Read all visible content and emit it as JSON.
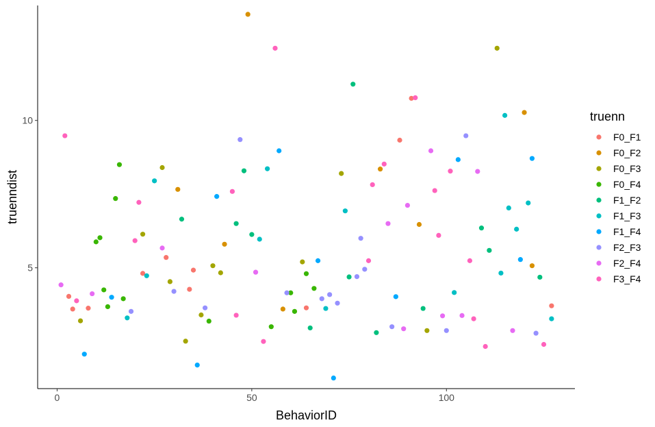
{
  "chart_data": {
    "type": "scatter",
    "xlabel": "BehaviorID",
    "ylabel": "truenndist",
    "xlim": [
      -5,
      133
    ],
    "ylim": [
      0.9,
      13.9
    ],
    "xticks": [
      0,
      50,
      100
    ],
    "yticks": [
      5,
      10
    ],
    "grid": false,
    "legend_title": "truenn",
    "legend_position": "right",
    "series": [
      {
        "name": "F0_F1",
        "color": "#F8766D",
        "points": [
          [
            3,
            4.03
          ],
          [
            4,
            3.6
          ],
          [
            8,
            3.63
          ],
          [
            22,
            4.81
          ],
          [
            28,
            5.35
          ],
          [
            34,
            4.27
          ],
          [
            35,
            4.92
          ],
          [
            64,
            3.64
          ],
          [
            88,
            9.33
          ],
          [
            91,
            10.75
          ],
          [
            127,
            3.71
          ]
        ]
      },
      {
        "name": "F0_F2",
        "color": "#D89000",
        "points": [
          [
            31,
            7.66
          ],
          [
            43,
            5.8
          ],
          [
            49,
            13.6
          ],
          [
            58,
            3.6
          ],
          [
            83,
            8.35
          ],
          [
            93,
            6.47
          ],
          [
            120,
            10.27
          ],
          [
            122,
            5.07
          ]
        ]
      },
      {
        "name": "F0_F3",
        "color": "#A3A500",
        "points": [
          [
            6,
            3.2
          ],
          [
            22,
            6.14
          ],
          [
            27,
            8.4
          ],
          [
            29,
            4.53
          ],
          [
            33,
            2.51
          ],
          [
            37,
            3.4
          ],
          [
            40,
            5.07
          ],
          [
            42,
            4.83
          ],
          [
            63,
            5.2
          ],
          [
            73,
            8.2
          ],
          [
            95,
            2.87
          ],
          [
            113,
            12.45
          ]
        ]
      },
      {
        "name": "F0_F4",
        "color": "#39B600",
        "points": [
          [
            10,
            5.88
          ],
          [
            11,
            6.02
          ],
          [
            12,
            4.25
          ],
          [
            13,
            3.68
          ],
          [
            15,
            7.35
          ],
          [
            16,
            8.5
          ],
          [
            17,
            3.95
          ],
          [
            39,
            3.19
          ],
          [
            55,
            3.0
          ],
          [
            60,
            4.15
          ],
          [
            61,
            3.52
          ],
          [
            64,
            4.8
          ],
          [
            66,
            4.3
          ]
        ]
      },
      {
        "name": "F1_F2",
        "color": "#00BF7D",
        "points": [
          [
            32,
            6.65
          ],
          [
            46,
            6.5
          ],
          [
            48,
            8.29
          ],
          [
            50,
            6.13
          ],
          [
            65,
            2.96
          ],
          [
            75,
            4.69
          ],
          [
            76,
            11.23
          ],
          [
            82,
            2.8
          ],
          [
            94,
            3.62
          ],
          [
            109,
            6.35
          ],
          [
            111,
            5.59
          ],
          [
            124,
            4.68
          ]
        ]
      },
      {
        "name": "F1_F3",
        "color": "#00BFC4",
        "points": [
          [
            18,
            3.3
          ],
          [
            23,
            4.73
          ],
          [
            25,
            7.95
          ],
          [
            52,
            5.97
          ],
          [
            54,
            8.36
          ],
          [
            69,
            3.62
          ],
          [
            74,
            6.93
          ],
          [
            102,
            4.16
          ],
          [
            114,
            4.82
          ],
          [
            115,
            10.17
          ],
          [
            116,
            7.03
          ],
          [
            118,
            6.31
          ],
          [
            121,
            7.2
          ],
          [
            127,
            3.27
          ]
        ]
      },
      {
        "name": "F1_F4",
        "color": "#00A9FF",
        "points": [
          [
            7,
            2.07
          ],
          [
            14,
            4.0
          ],
          [
            36,
            1.7
          ],
          [
            41,
            7.42
          ],
          [
            57,
            8.97
          ],
          [
            67,
            5.24
          ],
          [
            71,
            1.26
          ],
          [
            87,
            4.02
          ],
          [
            103,
            8.67
          ],
          [
            119,
            5.28
          ],
          [
            122,
            8.71
          ]
        ]
      },
      {
        "name": "F2_F3",
        "color": "#9590FF",
        "points": [
          [
            19,
            3.52
          ],
          [
            30,
            4.2
          ],
          [
            38,
            3.64
          ],
          [
            47,
            9.35
          ],
          [
            59,
            4.15
          ],
          [
            68,
            3.95
          ],
          [
            70,
            4.09
          ],
          [
            72,
            3.8
          ],
          [
            77,
            4.7
          ],
          [
            78,
            6.0
          ],
          [
            79,
            4.95
          ],
          [
            86,
            3.0
          ],
          [
            100,
            2.87
          ],
          [
            105,
            9.48
          ],
          [
            123,
            2.78
          ]
        ]
      },
      {
        "name": "F2_F4",
        "color": "#E76BF3",
        "points": [
          [
            1,
            4.42
          ],
          [
            9,
            4.12
          ],
          [
            27,
            5.67
          ],
          [
            51,
            4.85
          ],
          [
            85,
            6.5
          ],
          [
            89,
            2.93
          ],
          [
            90,
            7.12
          ],
          [
            96,
            8.97
          ],
          [
            99,
            3.37
          ],
          [
            104,
            3.38
          ],
          [
            108,
            8.27
          ],
          [
            117,
            2.87
          ]
        ]
      },
      {
        "name": "F3_F4",
        "color": "#FF62BC",
        "points": [
          [
            2,
            9.48
          ],
          [
            5,
            3.88
          ],
          [
            20,
            5.92
          ],
          [
            21,
            7.22
          ],
          [
            45,
            7.59
          ],
          [
            46,
            3.39
          ],
          [
            53,
            2.5
          ],
          [
            56,
            12.45
          ],
          [
            80,
            5.24
          ],
          [
            81,
            7.82
          ],
          [
            84,
            8.52
          ],
          [
            92,
            10.77
          ],
          [
            97,
            7.62
          ],
          [
            98,
            6.1
          ],
          [
            101,
            8.28
          ],
          [
            106,
            5.24
          ],
          [
            107,
            3.27
          ],
          [
            110,
            2.33
          ],
          [
            125,
            2.4
          ]
        ]
      }
    ]
  }
}
